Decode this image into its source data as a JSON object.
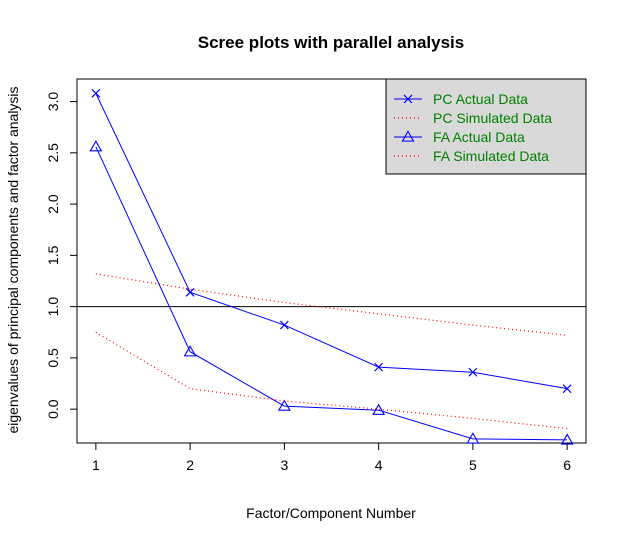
{
  "chart_data": {
    "type": "line",
    "title": "Scree plots with parallel analysis",
    "xlabel": "Factor/Component Number",
    "ylabel": "eigenvalues of principal components and factor analysis",
    "xlim": [
      0.8,
      6.2
    ],
    "ylim": [
      -0.33,
      3.22
    ],
    "x": [
      1,
      2,
      3,
      4,
      5,
      6
    ],
    "x_ticks": [
      "1",
      "2",
      "3",
      "4",
      "5",
      "6"
    ],
    "y_ticks": [
      {
        "value": 0.0,
        "label": "0.0"
      },
      {
        "value": 0.5,
        "label": "0.5"
      },
      {
        "value": 1.0,
        "label": "1.0"
      },
      {
        "value": 1.5,
        "label": "1.5"
      },
      {
        "value": 2.0,
        "label": "2.0"
      },
      {
        "value": 2.5,
        "label": "2.5"
      },
      {
        "value": 3.0,
        "label": "3.0"
      }
    ],
    "reference_line": 1.0,
    "grid": false,
    "legend_position": "top-right",
    "legend_background": "#d9d9d9",
    "series": [
      {
        "name": "PC  Actual Data",
        "values": [
          3.08,
          1.14,
          0.82,
          0.41,
          0.36,
          0.2
        ],
        "color": "#0000ff",
        "style": "solid",
        "marker": "x"
      },
      {
        "name": " PC  Simulated Data",
        "values": [
          1.32,
          1.17,
          1.04,
          0.93,
          0.82,
          0.72
        ],
        "color": "#ff0000",
        "style": "dotted",
        "marker": "none"
      },
      {
        "name": "FA  Actual Data",
        "values": [
          2.56,
          0.56,
          0.03,
          -0.01,
          -0.29,
          -0.3
        ],
        "color": "#0000ff",
        "style": "solid",
        "marker": "triangle"
      },
      {
        "name": " FA  Simulated Data",
        "values": [
          0.75,
          0.2,
          0.08,
          0.0,
          -0.09,
          -0.19
        ],
        "color": "#ff0000",
        "style": "dotted",
        "marker": "none"
      }
    ],
    "legend_text_color": "#008000"
  }
}
